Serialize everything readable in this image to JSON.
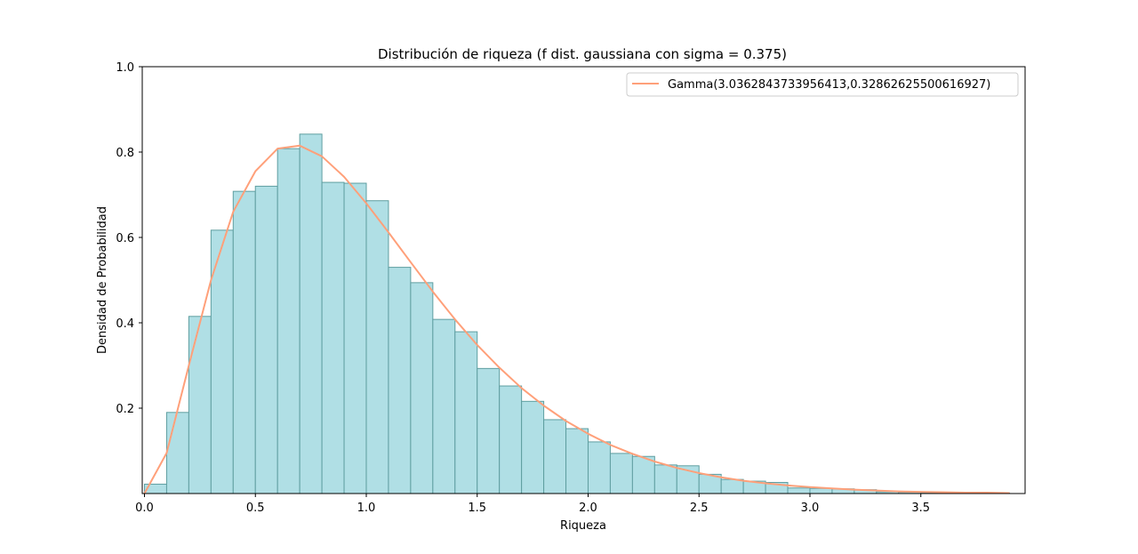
{
  "chart_data": {
    "type": "bar",
    "title": "Distribución de riqueza (f dist. gaussiana con sigma = 0.375)",
    "xlabel": "Riqueza",
    "ylabel": "Densidad de Probabilidad",
    "xlim": [
      -0.01,
      3.97
    ],
    "ylim": [
      0.0,
      1.0
    ],
    "x_ticks": [
      0.0,
      0.5,
      1.0,
      1.5,
      2.0,
      2.5,
      3.0,
      3.5
    ],
    "x_tick_labels": [
      "0.0",
      "0.5",
      "1.0",
      "1.5",
      "2.0",
      "2.5",
      "3.0",
      "3.5"
    ],
    "y_ticks": [
      0.2,
      0.4,
      0.6,
      0.8,
      1.0
    ],
    "y_tick_labels": [
      "0.2",
      "0.4",
      "0.6",
      "0.8",
      "1.0"
    ],
    "grid": false,
    "legend_position": "top-right",
    "bar_color": "#b0dfe5",
    "bar_edge_color": "#5f9ea0",
    "histogram": {
      "bin_width": 0.1,
      "bin_starts": [
        0.0,
        0.1,
        0.2,
        0.3,
        0.4,
        0.5,
        0.6,
        0.7,
        0.8,
        0.9,
        1.0,
        1.1,
        1.2,
        1.3,
        1.4,
        1.5,
        1.6,
        1.7,
        1.8,
        1.9,
        2.0,
        2.1,
        2.2,
        2.3,
        2.4,
        2.5,
        2.6,
        2.7,
        2.8,
        2.9,
        3.0,
        3.1,
        3.2,
        3.3,
        3.4,
        3.5,
        3.6,
        3.7,
        3.8
      ],
      "values": [
        0.022,
        0.19,
        0.415,
        0.617,
        0.708,
        0.72,
        0.808,
        0.842,
        0.729,
        0.727,
        0.686,
        0.53,
        0.494,
        0.408,
        0.379,
        0.293,
        0.252,
        0.216,
        0.173,
        0.152,
        0.121,
        0.094,
        0.087,
        0.067,
        0.065,
        0.045,
        0.033,
        0.029,
        0.026,
        0.013,
        0.012,
        0.011,
        0.009,
        0.004,
        0.003,
        0.002,
        0.002,
        0.001,
        0.001
      ]
    },
    "series": [
      {
        "name": "Gamma(3.0362843733956413,0.32862625500616927)",
        "type": "line",
        "color": "#ffa07a",
        "x": [
          0.0,
          0.1,
          0.2,
          0.3,
          0.4,
          0.5,
          0.6,
          0.7,
          0.8,
          0.9,
          1.0,
          1.1,
          1.2,
          1.3,
          1.4,
          1.5,
          1.6,
          1.7,
          1.8,
          1.9,
          2.0,
          2.1,
          2.2,
          2.3,
          2.4,
          2.5,
          2.6,
          2.7,
          2.8,
          2.9,
          3.0,
          3.1,
          3.2,
          3.3,
          3.4,
          3.5,
          3.6,
          3.7,
          3.8,
          3.9
        ],
        "y": [
          0.0,
          0.095,
          0.3,
          0.5,
          0.66,
          0.755,
          0.808,
          0.815,
          0.79,
          0.742,
          0.68,
          0.612,
          0.542,
          0.473,
          0.408,
          0.348,
          0.295,
          0.247,
          0.206,
          0.17,
          0.14,
          0.114,
          0.093,
          0.075,
          0.06,
          0.048,
          0.038,
          0.03,
          0.024,
          0.019,
          0.015,
          0.012,
          0.009,
          0.007,
          0.005,
          0.004,
          0.003,
          0.002,
          0.002,
          0.001
        ]
      }
    ]
  }
}
